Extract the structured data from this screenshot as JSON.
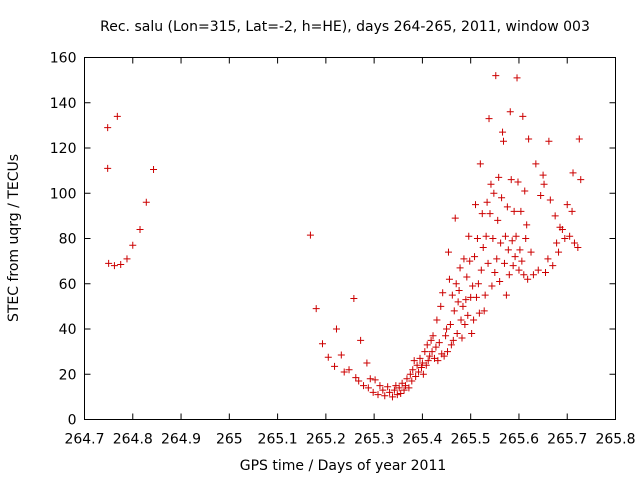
{
  "chart_data": {
    "type": "scatter",
    "title": "Rec. salu (Lon=315, Lat=-2, h=HE), days 264-265, 2011, window 003",
    "xlabel": "GPS time / Days of year 2011",
    "ylabel": "STEC from uqrg / TECUs",
    "xlim": [
      264.7,
      265.8
    ],
    "ylim": [
      0,
      160
    ],
    "xticks": [
      "264.7",
      "264.8",
      "264.9",
      "265",
      "265.1",
      "265.2",
      "265.3",
      "265.4",
      "265.5",
      "265.6",
      "265.7",
      "265.8"
    ],
    "yticks": [
      "0",
      "20",
      "40",
      "60",
      "80",
      "100",
      "120",
      "140",
      "160"
    ],
    "grid": false,
    "marker": "+",
    "color": "#cc0000",
    "points": [
      [
        264.748,
        129
      ],
      [
        264.748,
        111
      ],
      [
        264.75,
        69
      ],
      [
        264.762,
        68
      ],
      [
        264.768,
        134
      ],
      [
        264.775,
        68.5
      ],
      [
        264.788,
        71
      ],
      [
        264.8,
        77
      ],
      [
        264.815,
        84
      ],
      [
        264.828,
        96
      ],
      [
        264.843,
        110.5
      ],
      [
        265.168,
        81.5
      ],
      [
        265.18,
        49
      ],
      [
        265.193,
        33.5
      ],
      [
        265.205,
        27.5
      ],
      [
        265.218,
        23.5
      ],
      [
        265.222,
        40
      ],
      [
        265.232,
        28.5
      ],
      [
        265.238,
        21
      ],
      [
        265.248,
        22
      ],
      [
        265.258,
        53.5
      ],
      [
        265.262,
        18.5
      ],
      [
        265.268,
        17
      ],
      [
        265.272,
        35
      ],
      [
        265.278,
        15
      ],
      [
        265.285,
        25
      ],
      [
        265.288,
        14
      ],
      [
        265.292,
        18
      ],
      [
        265.298,
        12
      ],
      [
        265.302,
        17.5
      ],
      [
        265.308,
        11
      ],
      [
        265.312,
        15
      ],
      [
        265.318,
        13
      ],
      [
        265.322,
        10.5
      ],
      [
        265.328,
        14.5
      ],
      [
        265.332,
        12
      ],
      [
        265.338,
        10
      ],
      [
        265.342,
        13
      ],
      [
        265.345,
        15
      ],
      [
        265.348,
        11
      ],
      [
        265.352,
        14
      ],
      [
        265.355,
        11.5
      ],
      [
        265.358,
        16
      ],
      [
        265.362,
        13
      ],
      [
        265.365,
        15
      ],
      [
        265.368,
        18
      ],
      [
        265.372,
        14
      ],
      [
        265.375,
        20
      ],
      [
        265.378,
        17
      ],
      [
        265.38,
        22
      ],
      [
        265.383,
        26
      ],
      [
        265.386,
        19
      ],
      [
        265.389,
        24
      ],
      [
        265.392,
        21
      ],
      [
        265.395,
        27
      ],
      [
        265.398,
        23
      ],
      [
        265.4,
        25
      ],
      [
        265.402,
        20
      ],
      [
        265.405,
        30
      ],
      [
        265.408,
        24
      ],
      [
        265.41,
        33
      ],
      [
        265.412,
        26
      ],
      [
        265.415,
        28
      ],
      [
        265.418,
        35
      ],
      [
        265.42,
        30
      ],
      [
        265.422,
        37
      ],
      [
        265.425,
        27
      ],
      [
        265.428,
        32
      ],
      [
        265.43,
        44
      ],
      [
        265.432,
        26
      ],
      [
        265.435,
        34
      ],
      [
        265.438,
        50
      ],
      [
        265.44,
        29
      ],
      [
        265.442,
        56
      ],
      [
        265.445,
        28
      ],
      [
        265.448,
        37
      ],
      [
        265.45,
        40
      ],
      [
        265.452,
        30
      ],
      [
        265.454,
        74
      ],
      [
        265.456,
        62
      ],
      [
        265.458,
        42
      ],
      [
        265.46,
        33
      ],
      [
        265.462,
        55
      ],
      [
        265.464,
        35
      ],
      [
        265.466,
        48
      ],
      [
        265.468,
        89
      ],
      [
        265.47,
        60
      ],
      [
        265.472,
        38
      ],
      [
        265.474,
        52
      ],
      [
        265.476,
        57
      ],
      [
        265.478,
        67
      ],
      [
        265.48,
        44
      ],
      [
        265.482,
        36
      ],
      [
        265.484,
        50
      ],
      [
        265.486,
        71
      ],
      [
        265.488,
        42
      ],
      [
        265.49,
        53
      ],
      [
        265.492,
        63
      ],
      [
        265.494,
        46
      ],
      [
        265.496,
        81
      ],
      [
        265.498,
        70
      ],
      [
        265.5,
        54
      ],
      [
        265.502,
        38
      ],
      [
        265.504,
        59
      ],
      [
        265.506,
        44
      ],
      [
        265.508,
        72
      ],
      [
        265.51,
        95
      ],
      [
        265.512,
        54
      ],
      [
        265.514,
        80
      ],
      [
        265.516,
        60
      ],
      [
        265.518,
        47
      ],
      [
        265.52,
        113
      ],
      [
        265.522,
        66
      ],
      [
        265.524,
        91
      ],
      [
        265.526,
        76
      ],
      [
        265.528,
        48
      ],
      [
        265.53,
        55
      ],
      [
        265.532,
        81
      ],
      [
        265.534,
        96
      ],
      [
        265.536,
        69
      ],
      [
        265.538,
        133
      ],
      [
        265.54,
        91
      ],
      [
        265.542,
        104
      ],
      [
        265.544,
        59
      ],
      [
        265.546,
        80
      ],
      [
        265.548,
        100
      ],
      [
        265.55,
        65
      ],
      [
        265.552,
        152
      ],
      [
        265.554,
        71
      ],
      [
        265.556,
        88
      ],
      [
        265.558,
        107
      ],
      [
        265.56,
        61
      ],
      [
        265.562,
        78
      ],
      [
        265.564,
        98
      ],
      [
        265.566,
        127
      ],
      [
        265.568,
        123
      ],
      [
        265.57,
        69
      ],
      [
        265.572,
        81
      ],
      [
        265.574,
        55
      ],
      [
        265.576,
        94
      ],
      [
        265.578,
        75
      ],
      [
        265.58,
        64
      ],
      [
        265.582,
        136
      ],
      [
        265.584,
        106
      ],
      [
        265.586,
        79
      ],
      [
        265.588,
        68
      ],
      [
        265.59,
        92
      ],
      [
        265.592,
        72
      ],
      [
        265.594,
        81
      ],
      [
        265.596,
        151
      ],
      [
        265.598,
        105
      ],
      [
        265.6,
        66
      ],
      [
        265.602,
        75
      ],
      [
        265.604,
        92
      ],
      [
        265.606,
        70
      ],
      [
        265.608,
        134
      ],
      [
        265.61,
        64
      ],
      [
        265.612,
        101
      ],
      [
        265.614,
        80
      ],
      [
        265.616,
        86
      ],
      [
        265.618,
        62
      ],
      [
        265.62,
        124
      ],
      [
        265.625,
        74
      ],
      [
        265.63,
        64
      ],
      [
        265.635,
        113
      ],
      [
        265.64,
        66
      ],
      [
        265.645,
        99
      ],
      [
        265.65,
        108
      ],
      [
        265.652,
        104
      ],
      [
        265.655,
        65
      ],
      [
        265.66,
        71
      ],
      [
        265.662,
        123
      ],
      [
        265.665,
        97
      ],
      [
        265.67,
        68
      ],
      [
        265.675,
        90
      ],
      [
        265.678,
        78
      ],
      [
        265.682,
        74
      ],
      [
        265.685,
        85
      ],
      [
        265.69,
        84
      ],
      [
        265.695,
        80
      ],
      [
        265.7,
        95
      ],
      [
        265.705,
        81
      ],
      [
        265.71,
        92
      ],
      [
        265.712,
        109
      ],
      [
        265.715,
        78
      ],
      [
        265.722,
        76
      ],
      [
        265.725,
        124
      ],
      [
        265.728,
        106
      ]
    ]
  }
}
